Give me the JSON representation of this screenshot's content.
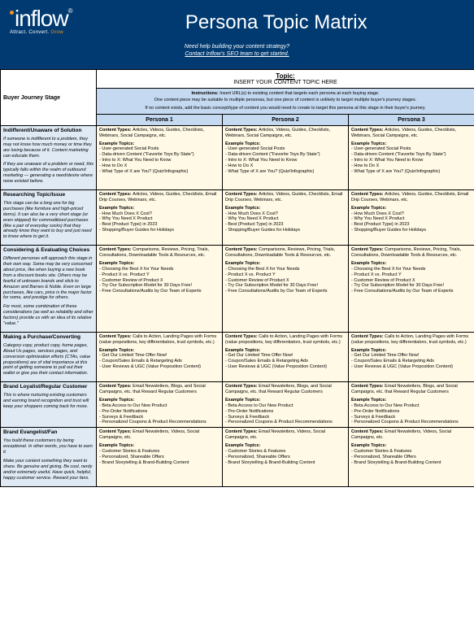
{
  "header": {
    "logo_main": "inflow",
    "logo_reg": "®",
    "tagline_prefix": "Attract. Convert. ",
    "tagline_grow": "Grow",
    "page_title": "Persona Topic Matrix",
    "help_line1": "Need help building your content strategy?",
    "help_line2": "Contact Inflow's SEO team to get started."
  },
  "topic": {
    "label": "Topic:",
    "placeholder": "INSERT YOUR CONTENT TOPIC HERE"
  },
  "instructions": {
    "lead": "Instructions:",
    "line1": " Insert URL(s) to existing content that targets each persona at each buying stage.",
    "line2": "One content piece may be suitable to multiple personas, but one piece of content is unlikely to target multiple buyer's journey stages.",
    "line3": "If no content exists, add the basic concept/type of content you would need to create to target this persona at this stage in their buyer's journey."
  },
  "col_headers": {
    "stage": "Buyer Journey Stage",
    "p1": "Persona 1",
    "p2": "Persona 2",
    "p3": "Persona 3"
  },
  "labels": {
    "content_types": "Content Types:",
    "example_topics": "Example Topics:"
  },
  "stages": [
    {
      "name": "Indifferent/Unaware of Solution",
      "desc": [
        "If someone is indifferent to a problem, they may not know how much money or time they are losing because of it. Content marketing can educate them.",
        "If they are unaware of a problem or need, this typically falls within the realm of outbound marketing — generating a need/desire where none existed before."
      ],
      "cells": [
        {
          "ct": "Articles, Videos, Guides, Checklists, Webinars, Social Campaigns, etc.",
          "et": [
            "User-generated Social Posts",
            "Data-driven Content (\"Favorite Toys By State\")",
            "Intro to X: What You Need to Know",
            "How to Do X",
            "What Type of X are You? (Quiz/Infographic)"
          ]
        },
        {
          "ct": "Articles, Videos, Guides, Checklists, Webinars, Social Campaigns, etc.",
          "et": [
            "User-generated Social Posts",
            "Data-driven Content (\"Favorite Toys By State\")",
            "Intro to X: What You Need to Know",
            "How to Do X",
            "What Type of X are You? (Quiz/Infographic)"
          ]
        },
        {
          "ct": "Articles, Videos, Guides, Checklists, Webinars, Social Campaigns, etc.",
          "et": [
            "User-generated Social Posts",
            "Data-driven Content (\"Favorite Toys By State\")",
            "Intro to X: What You Need to Know",
            "How to Do X",
            "What Type of X are You? (Quiz/Infographic)"
          ]
        }
      ]
    },
    {
      "name": "Researching Topic/Issue",
      "desc": [
        "This stage can be a long one for big purchases (like furniture and high-priced items). It can also be a very short stage (or even skipped) for commoditized purchases (like a pair of everyday socks) that they already know they want to buy and just need to know where to get it."
      ],
      "cells": [
        {
          "ct": "Articles, Videos, Guides, Checklists, Email Drip Courses, Webinars, etc.",
          "et": [
            "How Much Does X Cost?",
            "Why You Need X Product",
            "Best {Product Type} in 2023",
            "Shopping/Buyer Guides for Holidays"
          ]
        },
        {
          "ct": "Articles, Videos, Guides, Checklists, Email Drip Courses, Webinars, etc.",
          "et": [
            "How Much Does X Cost?",
            "Why You Need X Product",
            "Best {Product Type} in 2023",
            "Shopping/Buyer Guides for Holidays"
          ]
        },
        {
          "ct": "Articles, Videos, Guides, Checklists, Email Drip Courses, Webinars, etc.",
          "et": [
            "How Much Does X Cost?",
            "Why You Need X Product",
            "Best {Product Type} in 2023",
            "Shopping/Buyer Guides for Holidays"
          ]
        }
      ]
    },
    {
      "name": "Considering & Evaluating Choices",
      "desc": [
        "Different personas will approach this stage in their own way. Some may be very concerned about price, like when buying a new book from a discount books site. Others may be fearful of unknown brands and stick to Amazon and Barnes & Noble. Even on large purchases, like cars, price is the major factor for some, and prestige for others.",
        "For most, some combination of these considerations (as well as reliability and other factors) provide us with an idea of its relative \"value.\""
      ],
      "cells": [
        {
          "ct": "Comparisons, Reviews, Pricing, Trials, Consultations, Downloadable Tools & Resources, etc.",
          "et": [
            "Choosing the Best X for Your Needs",
            "Product X vs. Product Y",
            "Customer Review of Product X",
            "Try Our Subscription Model for 30 Days Free!",
            "Free Consultations/Audits by Our Team of Experts"
          ]
        },
        {
          "ct": "Comparisons, Reviews, Pricing, Trials, Consultations, Downloadable Tools & Resources, etc.",
          "et": [
            "Choosing the Best X for Your Needs",
            "Product X vs. Product Y",
            "Customer Review of Product X",
            "Try Our Subscription Model for 30 Days Free!",
            "Free Consultations/Audits by Our Team of Experts"
          ]
        },
        {
          "ct": "Comparisons, Reviews, Pricing, Trials, Consultations, Downloadable Tools & Resources, etc.",
          "et": [
            "Choosing the Best X for Your Needs",
            "Product X vs. Product Y",
            "Customer Review of Product X",
            "Try Our Subscription Model for 30 Days Free!",
            "Free Consultations/Audits by Our Team of Experts"
          ]
        }
      ]
    },
    {
      "name": "Making a Purchase/Converting",
      "desc": [
        "Category copy, product copy, home pages, About Us pages, services pages, and conversion optimization efforts (CTAs, value propositions) are of vital importance at this point of getting someone to pull out their wallet or give you their contact information."
      ],
      "cells": [
        {
          "ct": "Calls to Action, Landing Pages with Forms (value propositions, key differentiators, trust symbols, etc.)",
          "et": [
            "Get Our Limited Time Offer Now!",
            "Coupon/Sales Emails & Retargeting Ads",
            "User Reviews & UGC (Value Proposition Content)"
          ]
        },
        {
          "ct": "Calls to Action, Landing Pages with Forms (value propositions, key differentiators, trust symbols, etc.)",
          "et": [
            "Get Our Limited Time Offer Now!",
            "Coupon/Sales Emails & Retargeting Ads",
            "User Reviews & UGC (Value Proposition Content)"
          ]
        },
        {
          "ct": "Calls to Action, Landing Pages with Forms (value propositions, key differentiators, trust symbols, etc.)",
          "et": [
            "Get Our Limited Time Offer Now!",
            "Coupon/Sales Emails & Retargeting Ads",
            "User Reviews & UGC (Value Proposition Content)"
          ]
        }
      ]
    },
    {
      "name": "Brand Loyalist/Regular Customer",
      "desc": [
        "This is where nurturing existing customers and earning brand recognition and trust will keep your shoppers coming back for more."
      ],
      "cells": [
        {
          "ct": "Email Newsletters, Blogs, and Social Campaigns, etc. that Reward Regular Customers",
          "et": [
            "Beta Access to Our New Product",
            "Pre-Order Notifications",
            "Surveys & Feedback",
            "Personalized Coupons & Product Recommendations"
          ]
        },
        {
          "ct": "Email Newsletters, Blogs, and Social Campaigns, etc. that Reward Regular Customers",
          "et": [
            "Beta Access to Our New Product",
            "Pre-Order Notifications",
            "Surveys & Feedback",
            "Personalized Coupons & Product Recommendations"
          ]
        },
        {
          "ct": "Email Newsletters, Blogs, and Social Campaigns, etc. that Reward Regular Customers",
          "et": [
            "Beta Access to Our New Product",
            "Pre-Order Notifications",
            "Surveys & Feedback",
            "Personalized Coupons & Product Recommendations"
          ]
        }
      ]
    },
    {
      "name": "Brand Evangelist/Fan",
      "desc": [
        "You build these customers by being exceptional. In other words, you have to earn it.",
        "Make your content something they want to share. Be genuine and giving. Be cool, nerdy and/or extremely useful. Have quick, helpful, happy customer service. Reward your fans."
      ],
      "cells": [
        {
          "ct": "Email Newsletters, Videos, Social Campaigns, etc.",
          "et": [
            "Customer Stories & Features",
            "Personalized, Shareable Offers",
            "Brand Storytelling & Brand-Building Content"
          ]
        },
        {
          "ct": "Email Newsletters, Videos, Social Campaigns, etc.",
          "et": [
            "Customer Stories & Features",
            "Personalized, Shareable Offers",
            "Brand Storytelling & Brand-Building Content"
          ]
        },
        {
          "ct": "Email Newsletters, Videos, Social Campaigns, etc.",
          "et": [
            "Customer Stories & Features",
            "Personalized, Shareable Offers",
            "Brand Storytelling & Brand-Building Content"
          ]
        }
      ]
    }
  ]
}
